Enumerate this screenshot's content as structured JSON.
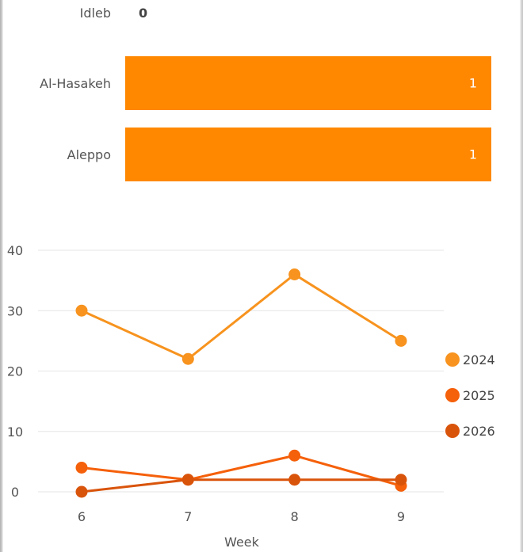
{
  "chart_data": [
    {
      "type": "bar",
      "orientation": "horizontal",
      "categories": [
        "Idleb",
        "Al-Hasakeh",
        "Aleppo"
      ],
      "values": [
        0,
        1,
        1
      ],
      "data_labels": [
        "0",
        "1",
        "1"
      ],
      "colors": {
        "bar": "#ff8800",
        "label_text": "#ffffff"
      }
    },
    {
      "type": "line",
      "xlabel": "Week",
      "x": [
        6,
        7,
        8,
        9
      ],
      "x_ticks": [
        "6",
        "7",
        "8",
        "9"
      ],
      "y_ticks": [
        "0",
        "10",
        "20",
        "30",
        "40"
      ],
      "ylim": [
        0,
        40
      ],
      "grid": true,
      "legend_position": "right",
      "series": [
        {
          "name": "2024",
          "values": [
            30,
            22,
            36,
            25
          ],
          "color": "#f7931e"
        },
        {
          "name": "2025",
          "values": [
            4,
            2,
            6,
            1
          ],
          "color": "#f5600a"
        },
        {
          "name": "2026",
          "values": [
            0,
            2,
            2,
            2
          ],
          "color": "#d9540b"
        }
      ]
    }
  ]
}
